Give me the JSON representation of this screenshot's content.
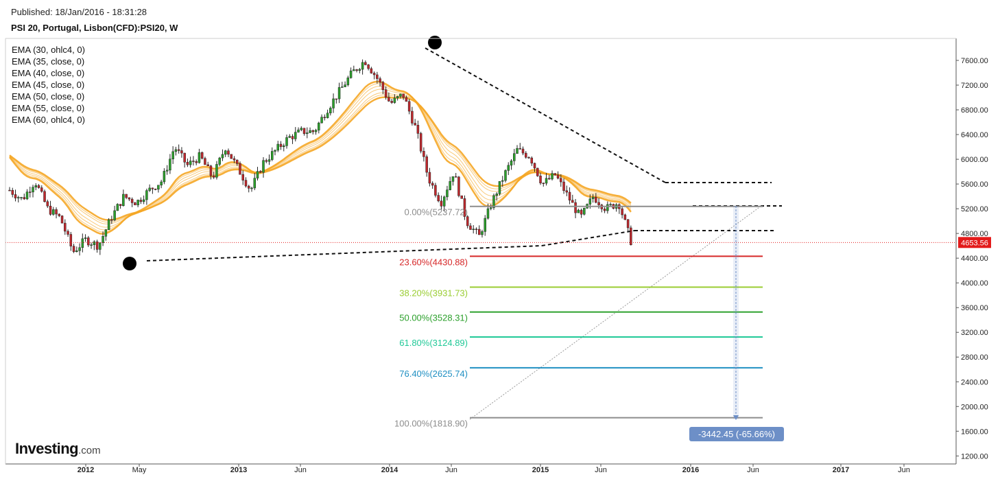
{
  "header": {
    "published": "Published: 18/Jan/2016 - 18:31:28",
    "symbol": "PSI 20, Portugal, Lisbon(CFD):PSI20, W"
  },
  "legend": [
    "EMA (30, ohlc4, 0)",
    "EMA (35, close, 0)",
    "EMA (40, close, 0)",
    "EMA (45, close, 0)",
    "EMA (50, close, 0)",
    "EMA (55, close, 0)",
    "EMA (60, ohlc4, 0)"
  ],
  "logo": {
    "main": "Investing",
    "suffix": ".com"
  },
  "colors": {
    "up": "#2ca02c",
    "down": "#c0282d",
    "ema": "#f5a623",
    "price_line": "#e31b1b",
    "measure": "#6d8fc7"
  },
  "chart_data": {
    "type": "candlestick",
    "title": "PSI 20, Portugal, Lisbon(CFD):PSI20, W",
    "x_tick_labels": [
      "2012",
      "May",
      "2013",
      "Jun",
      "2014",
      "Jun",
      "2015",
      "Jun",
      "2016",
      "Jun",
      "2017",
      "Jun"
    ],
    "y_ticks": [
      "7600.00",
      "7200.00",
      "6800.00",
      "6400.00",
      "6000.00",
      "5600.00",
      "5200.00",
      "4800.00",
      "4400.00",
      "4000.00",
      "3600.00",
      "3200.00",
      "2800.00",
      "2400.00",
      "2000.00",
      "1600.00",
      "1200.00"
    ],
    "ylim": [
      1200,
      7900
    ],
    "last_price": "4653.56",
    "close_series": [
      {
        "date": "2011-12",
        "value": 5500
      },
      {
        "date": "2012-01",
        "value": 5350
      },
      {
        "date": "2012-02",
        "value": 5650
      },
      {
        "date": "2012-03",
        "value": 5200
      },
      {
        "date": "2012-04",
        "value": 5050
      },
      {
        "date": "2012-05",
        "value": 4500
      },
      {
        "date": "2012-06",
        "value": 4700
      },
      {
        "date": "2012-07",
        "value": 4600
      },
      {
        "date": "2012-08",
        "value": 5050
      },
      {
        "date": "2012-09",
        "value": 5400
      },
      {
        "date": "2012-10",
        "value": 5300
      },
      {
        "date": "2012-11",
        "value": 5500
      },
      {
        "date": "2012-12",
        "value": 5650
      },
      {
        "date": "2013-01",
        "value": 6200
      },
      {
        "date": "2013-02",
        "value": 5900
      },
      {
        "date": "2013-03",
        "value": 6050
      },
      {
        "date": "2013-04",
        "value": 5700
      },
      {
        "date": "2013-05",
        "value": 6200
      },
      {
        "date": "2013-06",
        "value": 5850
      },
      {
        "date": "2013-07",
        "value": 5500
      },
      {
        "date": "2013-08",
        "value": 5950
      },
      {
        "date": "2013-09",
        "value": 6150
      },
      {
        "date": "2013-10",
        "value": 6350
      },
      {
        "date": "2013-11",
        "value": 6450
      },
      {
        "date": "2013-12",
        "value": 6450
      },
      {
        "date": "2014-01",
        "value": 6800
      },
      {
        "date": "2014-02",
        "value": 7100
      },
      {
        "date": "2014-03",
        "value": 7400
      },
      {
        "date": "2014-04",
        "value": 7600
      },
      {
        "date": "2014-05",
        "value": 7300
      },
      {
        "date": "2014-06",
        "value": 6900
      },
      {
        "date": "2014-07",
        "value": 7050
      },
      {
        "date": "2014-08",
        "value": 6500
      },
      {
        "date": "2014-09",
        "value": 5700
      },
      {
        "date": "2014-10",
        "value": 5300
      },
      {
        "date": "2014-11",
        "value": 5800
      },
      {
        "date": "2014-12",
        "value": 5000
      },
      {
        "date": "2015-01",
        "value": 4750
      },
      {
        "date": "2015-02",
        "value": 5300
      },
      {
        "date": "2015-03",
        "value": 5750
      },
      {
        "date": "2015-04",
        "value": 6150
      },
      {
        "date": "2015-05",
        "value": 6050
      },
      {
        "date": "2015-06",
        "value": 5600
      },
      {
        "date": "2015-07",
        "value": 5750
      },
      {
        "date": "2015-08",
        "value": 5400
      },
      {
        "date": "2015-09",
        "value": 5050
      },
      {
        "date": "2015-10",
        "value": 5400
      },
      {
        "date": "2015-11",
        "value": 5200
      },
      {
        "date": "2015-12",
        "value": 5300
      },
      {
        "date": "2016-01",
        "value": 4653.56
      }
    ],
    "fibonacci": [
      {
        "label": "0.00%(5237.72)",
        "value": 5237.72,
        "color": "#8c8c8c"
      },
      {
        "label": "23.60%(4430.88)",
        "value": 4430.88,
        "color": "#d62728"
      },
      {
        "label": "38.20%(3931.73)",
        "value": 3931.73,
        "color": "#9acd32"
      },
      {
        "label": "50.00%(3528.31)",
        "value": 3528.31,
        "color": "#2ca02c"
      },
      {
        "label": "61.80%(3124.89)",
        "value": 3124.89,
        "color": "#20c997"
      },
      {
        "label": "76.40%(2625.74)",
        "value": 2625.74,
        "color": "#1f8fc2"
      },
      {
        "label": "100.00%(1818.90)",
        "value": 1818.9,
        "color": "#8c8c8c"
      }
    ],
    "measure_label": "-3442.45 (-65.66%)"
  }
}
